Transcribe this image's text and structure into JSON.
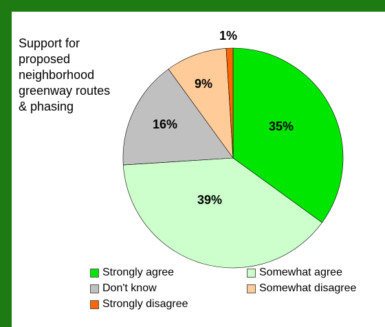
{
  "chart_data": {
    "type": "pie",
    "title": "Support for\nproposed\nneighborhood\ngreenway routes\n& phasing",
    "slices": [
      {
        "label": "Strongly agree",
        "value": 35,
        "display": "35%",
        "color": "#00e600"
      },
      {
        "label": "Somewhat agree",
        "value": 39,
        "display": "39%",
        "color": "#ccffcc"
      },
      {
        "label": "Don't know",
        "value": 16,
        "display": "16%",
        "color": "#c0c0c0"
      },
      {
        "label": "Somewhat disagree",
        "value": 9,
        "display": "9%",
        "color": "#ffcc99"
      },
      {
        "label": "Strongly disagree",
        "value": 1,
        "display": "1%",
        "color": "#ff6600"
      }
    ],
    "legend_position": "bottom"
  }
}
